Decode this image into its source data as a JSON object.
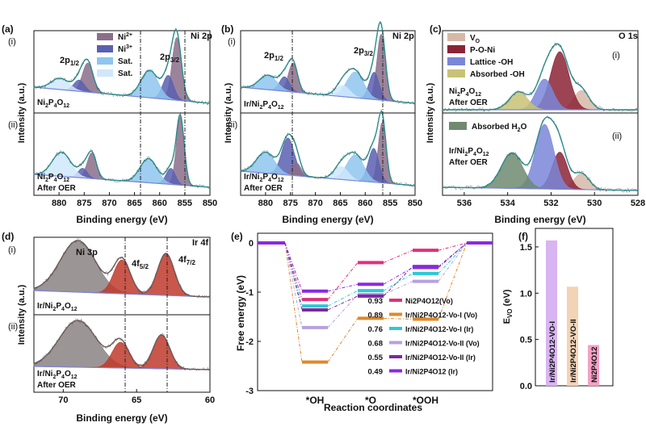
{
  "colors": {
    "ni2": "#8a6f8a",
    "ni3": "#5a5fb0",
    "sat1": "#8ec6ef",
    "sat2": "#cfe8fb",
    "vo": "#d7b8a8",
    "pon": "#8b2335",
    "lattice": "#7a86d8",
    "absoh": "#c9c276",
    "absh2o": "#6f8a70",
    "ir": "#c0392b",
    "ni3p": "#8a8282",
    "env": "#2c8c8c",
    "bg": "#3a48c8",
    "s1": "#e0307a",
    "s2": "#e0882a",
    "s3": "#2cc8d8",
    "s4": "#b8a0e0",
    "s5": "#7a2aa0",
    "s6": "#8a2ae0",
    "bar1": "#d8b4f2",
    "bar2": "#f4d2b4",
    "bar3": "#f4a0c4"
  },
  "panel_a": {
    "label": "(a)",
    "tag": "Ni 2p",
    "sub_i": "(i)",
    "sub_ii": "(ii)",
    "sample_i": "Ni2P4O12",
    "sample_ii": "Ni2P4O12",
    "after": "After OER",
    "peak_1": "2p1/2",
    "peak_3": "2p3/2",
    "legend": [
      "Ni2+",
      "Ni3+",
      "Sat.",
      "Sat."
    ]
  },
  "panel_b": {
    "label": "(b)",
    "tag": "Ni 2p",
    "sub_i": "(i)",
    "sub_ii": "(ii)",
    "sample_i": "Ir/Ni2P4O12",
    "sample_ii": "Ir/Ni2P4O12",
    "after": "After OER",
    "peak_1": "2p1/2",
    "peak_3": "2p3/2"
  },
  "panel_c": {
    "label": "(c)",
    "tag": "O 1s",
    "sub_i": "(i)",
    "sub_ii": "(ii)",
    "sample_i": "Ni2P4O12",
    "sample_ii": "Ir/Ni2P4O12",
    "after": "After OER",
    "legend": [
      "VO",
      "P-O-Ni",
      "Lattice -OH",
      "Absorbed -OH"
    ],
    "legend_ii": "Absorbed H2O"
  },
  "panel_d": {
    "label": "(d)",
    "tag": "Ir 4f",
    "sub_i": "(i)",
    "sub_ii": "(ii)",
    "sample_i": "Ir/Ni2P4O12",
    "sample_ii": "Ir/Ni2P4O12",
    "after": "After OER",
    "peak_ni3p": "Ni 3p",
    "peak_52": "4f5/2",
    "peak_72": "4f7/2"
  },
  "panel_e": {
    "label": "(e)"
  },
  "panel_f": {
    "label": "(f)"
  },
  "chart_data": [
    {
      "type": "line",
      "title": "XPS Ni 2p (a)",
      "xlabel": "Binding energy (eV)",
      "ylabel": "Intensity (a.u.)",
      "xlim": [
        850,
        885
      ],
      "x_ticks": [
        880,
        875,
        870,
        865,
        860,
        855,
        850
      ],
      "reversed_x": true,
      "series": [
        {
          "name": "Ni2P4O12",
          "peaks": [
            {
              "component": "Ni2+",
              "x": 856.6
            },
            {
              "component": "Ni3+",
              "x": 858.3
            },
            {
              "component": "Sat.",
              "x": 862.0
            },
            {
              "component": "Ni2+",
              "x": 874.3
            },
            {
              "component": "Sat.",
              "x": 879.8
            }
          ]
        },
        {
          "name": "Ni2P4O12 After OER",
          "peaks": [
            {
              "component": "Ni2+",
              "x": 855.9
            },
            {
              "component": "Ni3+",
              "x": 857.8
            },
            {
              "component": "Sat.",
              "x": 862.2
            },
            {
              "component": "Ni2+",
              "x": 873.5
            },
            {
              "component": "Sat.",
              "x": 879.5
            }
          ]
        }
      ],
      "reference_lines_x": [
        873.3,
        856.0
      ]
    },
    {
      "type": "line",
      "title": "XPS Ni 2p (b)",
      "xlabel": "Binding energy (eV)",
      "ylabel": "Intensity (a.u.)",
      "xlim": [
        850,
        885
      ],
      "x_ticks": [
        880,
        875,
        870,
        865,
        860,
        855,
        850
      ],
      "reversed_x": true,
      "series": [
        {
          "name": "Ir/Ni2P4O12",
          "peaks": [
            {
              "x": 856.8
            },
            {
              "x": 858.2
            },
            {
              "x": 862.0
            },
            {
              "x": 874.5
            },
            {
              "x": 879.5
            }
          ]
        },
        {
          "name": "Ir/Ni2P4O12 After OER",
          "peaks": [
            {
              "x": 856.6
            },
            {
              "x": 858.3
            },
            {
              "x": 862.0
            },
            {
              "x": 875.5
            },
            {
              "x": 880.0
            }
          ]
        }
      ],
      "reference_lines_x": [
        873.5,
        856.7
      ]
    },
    {
      "type": "line",
      "title": "XPS O 1s (c)",
      "xlabel": "Binding energy (eV)",
      "ylabel": "Intensity (a.u.)",
      "xlim": [
        528,
        537
      ],
      "x_ticks": [
        536,
        534,
        532,
        530,
        528
      ],
      "reversed_x": true,
      "series": [
        {
          "name": "Ni2P4O12 After OER",
          "peaks": [
            {
              "component": "VO",
              "x": 530.6
            },
            {
              "component": "P-O-Ni",
              "x": 531.6
            },
            {
              "component": "Lattice -OH",
              "x": 532.3
            },
            {
              "component": "Absorbed -OH",
              "x": 533.5
            }
          ]
        },
        {
          "name": "Ir/Ni2P4O12 After OER",
          "peaks": [
            {
              "component": "VO",
              "x": 530.6
            },
            {
              "component": "P-O-Ni",
              "x": 531.6
            },
            {
              "component": "Lattice -OH",
              "x": 532.3
            },
            {
              "component": "Absorbed H2O",
              "x": 533.8
            }
          ]
        }
      ]
    },
    {
      "type": "line",
      "title": "XPS Ir 4f (d)",
      "xlabel": "Binding energy (eV)",
      "ylabel": "Intensity (a.u.)",
      "xlim": [
        60,
        72
      ],
      "x_ticks": [
        70,
        65,
        60
      ],
      "reversed_x": true,
      "series": [
        {
          "name": "Ir/Ni2P4O12",
          "peaks": [
            {
              "component": "Ni 3p",
              "x": 69.0
            },
            {
              "component": "4f5/2",
              "x": 66.0
            },
            {
              "component": "4f7/2",
              "x": 63.0
            }
          ]
        },
        {
          "name": "Ir/Ni2P4O12 After OER",
          "peaks": [
            {
              "component": "Ni 3p",
              "x": 69.0
            },
            {
              "component": "4f5/2",
              "x": 66.1
            },
            {
              "component": "4f7/2",
              "x": 63.3
            }
          ]
        }
      ],
      "reference_lines_x": [
        66.0,
        63.2
      ]
    },
    {
      "type": "line",
      "title": "Free energy diagram (e)",
      "xlabel": "Reaction coordinates",
      "ylabel": "Free energy (eV)",
      "categories": [
        "",
        "*OH",
        "*O",
        "*OOH",
        ""
      ],
      "ylim": [
        -3,
        0.2
      ],
      "y_ticks": [
        0,
        -1,
        -2,
        -3
      ],
      "series": [
        {
          "name": "Ni2P4O12(Vo)",
          "overpotential": "0.93",
          "values": [
            0,
            -1.15,
            -0.4,
            -0.15,
            0
          ]
        },
        {
          "name": "Ir/Ni2P4O12-Vo-I (Vo)",
          "overpotential": "0.89",
          "values": [
            0,
            -2.42,
            -1.53,
            -1.55,
            0
          ]
        },
        {
          "name": "Ir/Ni2P4O12-Vo-I (Ir)",
          "overpotential": "0.76",
          "values": [
            0,
            -1.28,
            -0.97,
            -0.62,
            0
          ]
        },
        {
          "name": "Ir/Ni2P4O12-Vo-II (Vo)",
          "overpotential": "0.68",
          "values": [
            0,
            -1.72,
            -1.05,
            -0.78,
            0
          ]
        },
        {
          "name": "Ir/Ni2P4O12-Vo-II (Ir)",
          "overpotential": "0.55",
          "values": [
            0,
            -1.36,
            -1.08,
            -0.48,
            0
          ]
        },
        {
          "name": "Ir/Ni2P4O12 (Ir)",
          "overpotential": "0.49",
          "values": [
            0,
            -0.98,
            -0.84,
            -0.5,
            0
          ]
        }
      ]
    },
    {
      "type": "bar",
      "title": "Oxygen vacancy formation energy (f)",
      "ylabel": "EVO (eV)",
      "ylim": [
        0,
        1.7
      ],
      "y_ticks": [
        0.0,
        0.5,
        1.0,
        1.5
      ],
      "categories": [
        "Ir/Ni2P4O12-VO-I",
        "Ir/Ni2P4O12-VO-II",
        "Ni2P4O12"
      ],
      "values": [
        1.57,
        1.07,
        0.44
      ]
    }
  ]
}
